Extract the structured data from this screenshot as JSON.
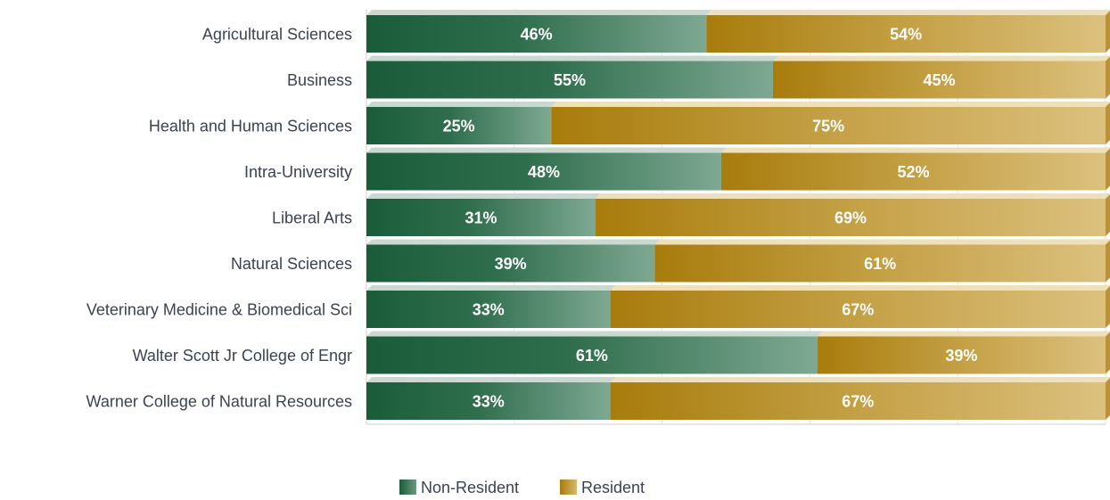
{
  "chart_data": {
    "type": "bar",
    "orientation": "horizontal",
    "stacked": true,
    "percent_stacked": true,
    "categories": [
      "Agricultural Sciences",
      "Business",
      "Health and Human Sciences",
      "Intra-University",
      "Liberal Arts",
      "Natural Sciences",
      "Veterinary Medicine & Biomedical Sci",
      "Walter Scott Jr College of Engr",
      "Warner College of Natural Resources"
    ],
    "series": [
      {
        "name": "Non-Resident",
        "color": "#1e5e3e",
        "values": [
          46,
          55,
          25,
          48,
          31,
          39,
          33,
          61,
          33
        ],
        "labels": [
          "46%",
          "55%",
          "25%",
          "48%",
          "31%",
          "39%",
          "33%",
          "61%",
          "33%"
        ]
      },
      {
        "name": "Resident",
        "color": "#b08414",
        "values": [
          54,
          45,
          75,
          52,
          69,
          61,
          67,
          39,
          67
        ],
        "labels": [
          "54%",
          "45%",
          "75%",
          "52%",
          "69%",
          "61%",
          "67%",
          "39%",
          "67%"
        ]
      }
    ],
    "xlim": [
      0,
      100
    ],
    "grid": true,
    "legend": "bottom-center",
    "title": "",
    "xlabel": "",
    "ylabel": ""
  }
}
